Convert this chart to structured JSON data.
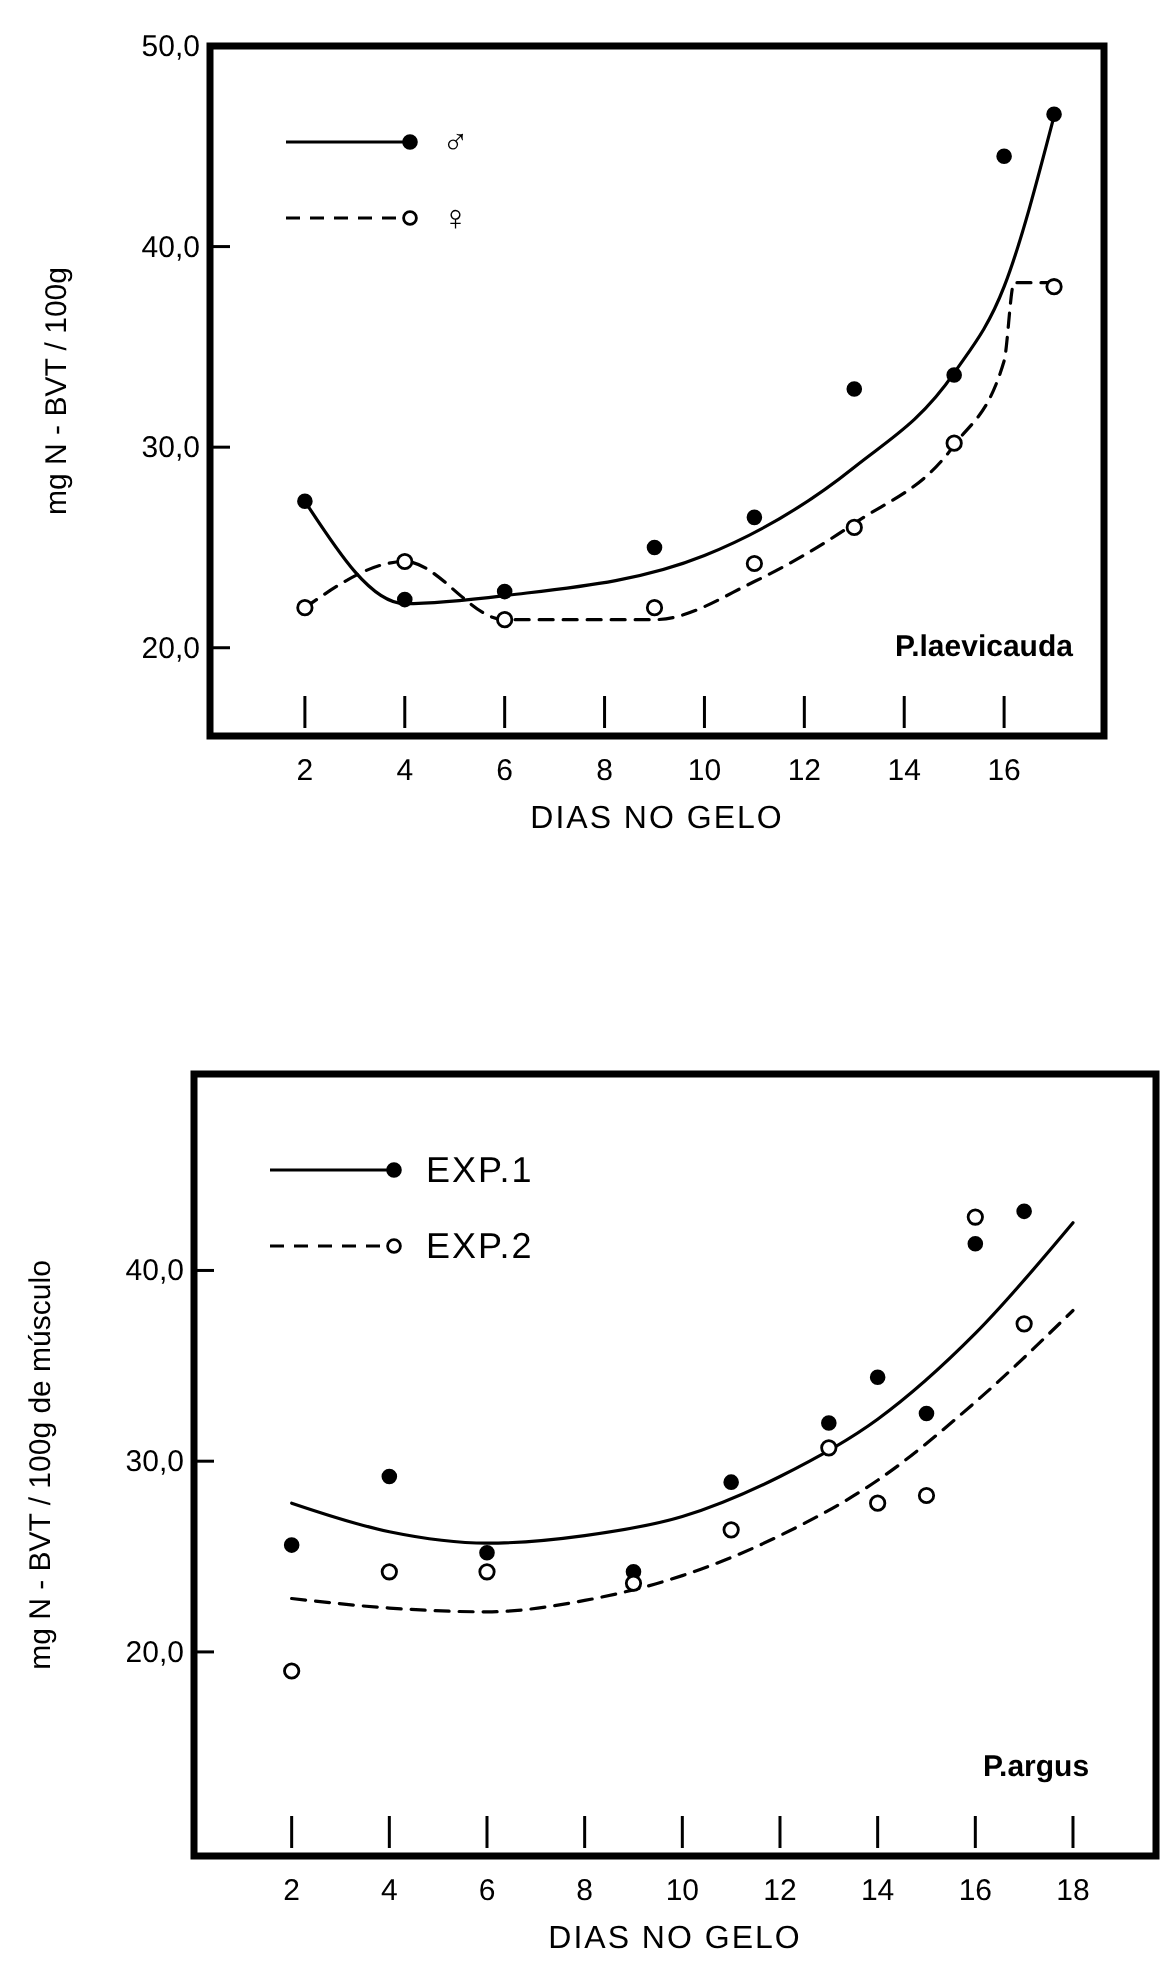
{
  "chart_data": [
    {
      "type": "scatter",
      "xlabel": "DIAS NO GELO",
      "ylabel": "mg N - BVT / 100g",
      "annotations": [
        "P.laevicauda"
      ],
      "xlim": [
        0.1,
        18
      ],
      "ylim": [
        15.6,
        50
      ],
      "xticks": [
        2,
        4,
        6,
        8,
        10,
        12,
        14,
        16
      ],
      "yticks": [
        {
          "value": 20,
          "label": "20,0"
        },
        {
          "value": 30,
          "label": "30,0"
        },
        {
          "value": 40,
          "label": "40,0"
        },
        {
          "value": 50,
          "label": "50,0"
        }
      ],
      "grid": false,
      "legend": "top left",
      "series": [
        {
          "name": "♂",
          "type": "line",
          "line_style": "solid",
          "color": "#000000",
          "x": [
            2,
            4,
            6,
            10,
            13,
            15,
            16,
            17
          ],
          "values": [
            27.3,
            22.2,
            22.6,
            24.6,
            29.0,
            33.7,
            38.0,
            46.5
          ]
        },
        {
          "name": "♀",
          "type": "line",
          "line_style": "dashed",
          "color": "#000000",
          "x": [
            2,
            4,
            6,
            9,
            11,
            13,
            15,
            16,
            16.2,
            17
          ],
          "values": [
            22.0,
            24.3,
            21.4,
            21.4,
            23.3,
            26.2,
            30.1,
            34.3,
            38.2,
            38.2
          ]
        },
        {
          "marker": "circle",
          "color": "#000000",
          "x": [
            2,
            4,
            6,
            9,
            11,
            13,
            15,
            16,
            17
          ],
          "values": [
            27.3,
            22.4,
            22.8,
            25.0,
            26.5,
            32.9,
            33.6,
            44.5,
            46.6
          ]
        },
        {
          "marker": "circle",
          "color": "#000000",
          "x": [
            2,
            4,
            6,
            9,
            11,
            13,
            15,
            17
          ],
          "values": [
            22.0,
            24.3,
            21.4,
            22.0,
            24.2,
            26.0,
            30.2,
            38.0
          ]
        }
      ]
    },
    {
      "type": "scatter",
      "xlabel": "DIAS NO GELO",
      "ylabel": "mg N - BVT / 100g de músculo",
      "annotations": [
        "P.argus"
      ],
      "xlim": [
        0,
        19.7
      ],
      "ylim": [
        9.3,
        50.3
      ],
      "xticks": [
        2,
        4,
        6,
        8,
        10,
        12,
        14,
        16,
        18
      ],
      "yticks": [
        {
          "value": 20,
          "label": "20,0"
        },
        {
          "value": 30,
          "label": "30,0"
        },
        {
          "value": 40,
          "label": "40,0"
        }
      ],
      "grid": false,
      "legend": "top left",
      "series": [
        {
          "name": "EXP.1",
          "type": "line",
          "line_style": "solid",
          "color": "#000000",
          "x": [
            2,
            4,
            6,
            8,
            10,
            12,
            14,
            16,
            18
          ],
          "values": [
            27.8,
            26.3,
            25.7,
            26.1,
            27.1,
            29.2,
            32.2,
            36.7,
            42.5
          ]
        },
        {
          "name": "EXP.2",
          "type": "line",
          "line_style": "dashed",
          "color": "#000000",
          "x": [
            2,
            4,
            6,
            8,
            10,
            12,
            14,
            16,
            18
          ],
          "values": [
            22.8,
            22.3,
            22.1,
            22.7,
            24.0,
            26.1,
            29.0,
            33.1,
            37.9
          ]
        },
        {
          "marker": "circle",
          "color": "#000000",
          "x": [
            2,
            4,
            6,
            9,
            11,
            13,
            14,
            15,
            16,
            17
          ],
          "values": [
            25.6,
            29.2,
            25.2,
            24.2,
            28.9,
            32.0,
            34.4,
            32.5,
            41.4,
            43.1
          ]
        },
        {
          "marker": "circle",
          "color": "#000000",
          "x": [
            2,
            4,
            6,
            9,
            11,
            13,
            14,
            15,
            16,
            17
          ],
          "values": [
            19.0,
            24.2,
            24.2,
            23.6,
            26.4,
            30.7,
            27.8,
            28.2,
            42.8,
            37.2
          ]
        }
      ]
    }
  ]
}
